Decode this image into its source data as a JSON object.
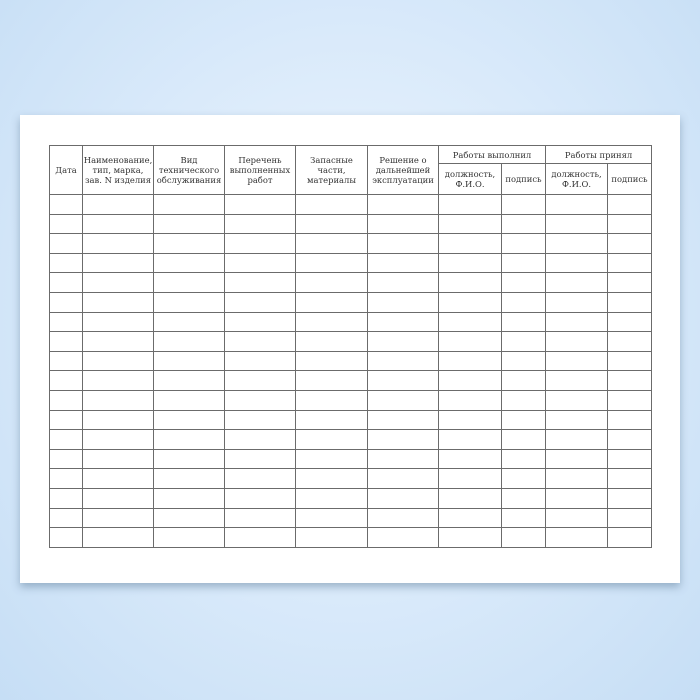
{
  "table": {
    "headers": {
      "date": "Дата",
      "name": "Наименование, тип, марка, зав. N изделия",
      "service_type": "Вид технического обслуживания",
      "works_list": "Перечень выполненных работ",
      "spare_parts": "Запасные части, материалы",
      "decision": "Решение о дальнейшей эксплуатации",
      "performed_by": "Работы выполнил",
      "accepted_by": "Работы принял",
      "position_name": "должность, Ф.И.О.",
      "signature": "подпись"
    },
    "empty_row_count": 18
  }
}
